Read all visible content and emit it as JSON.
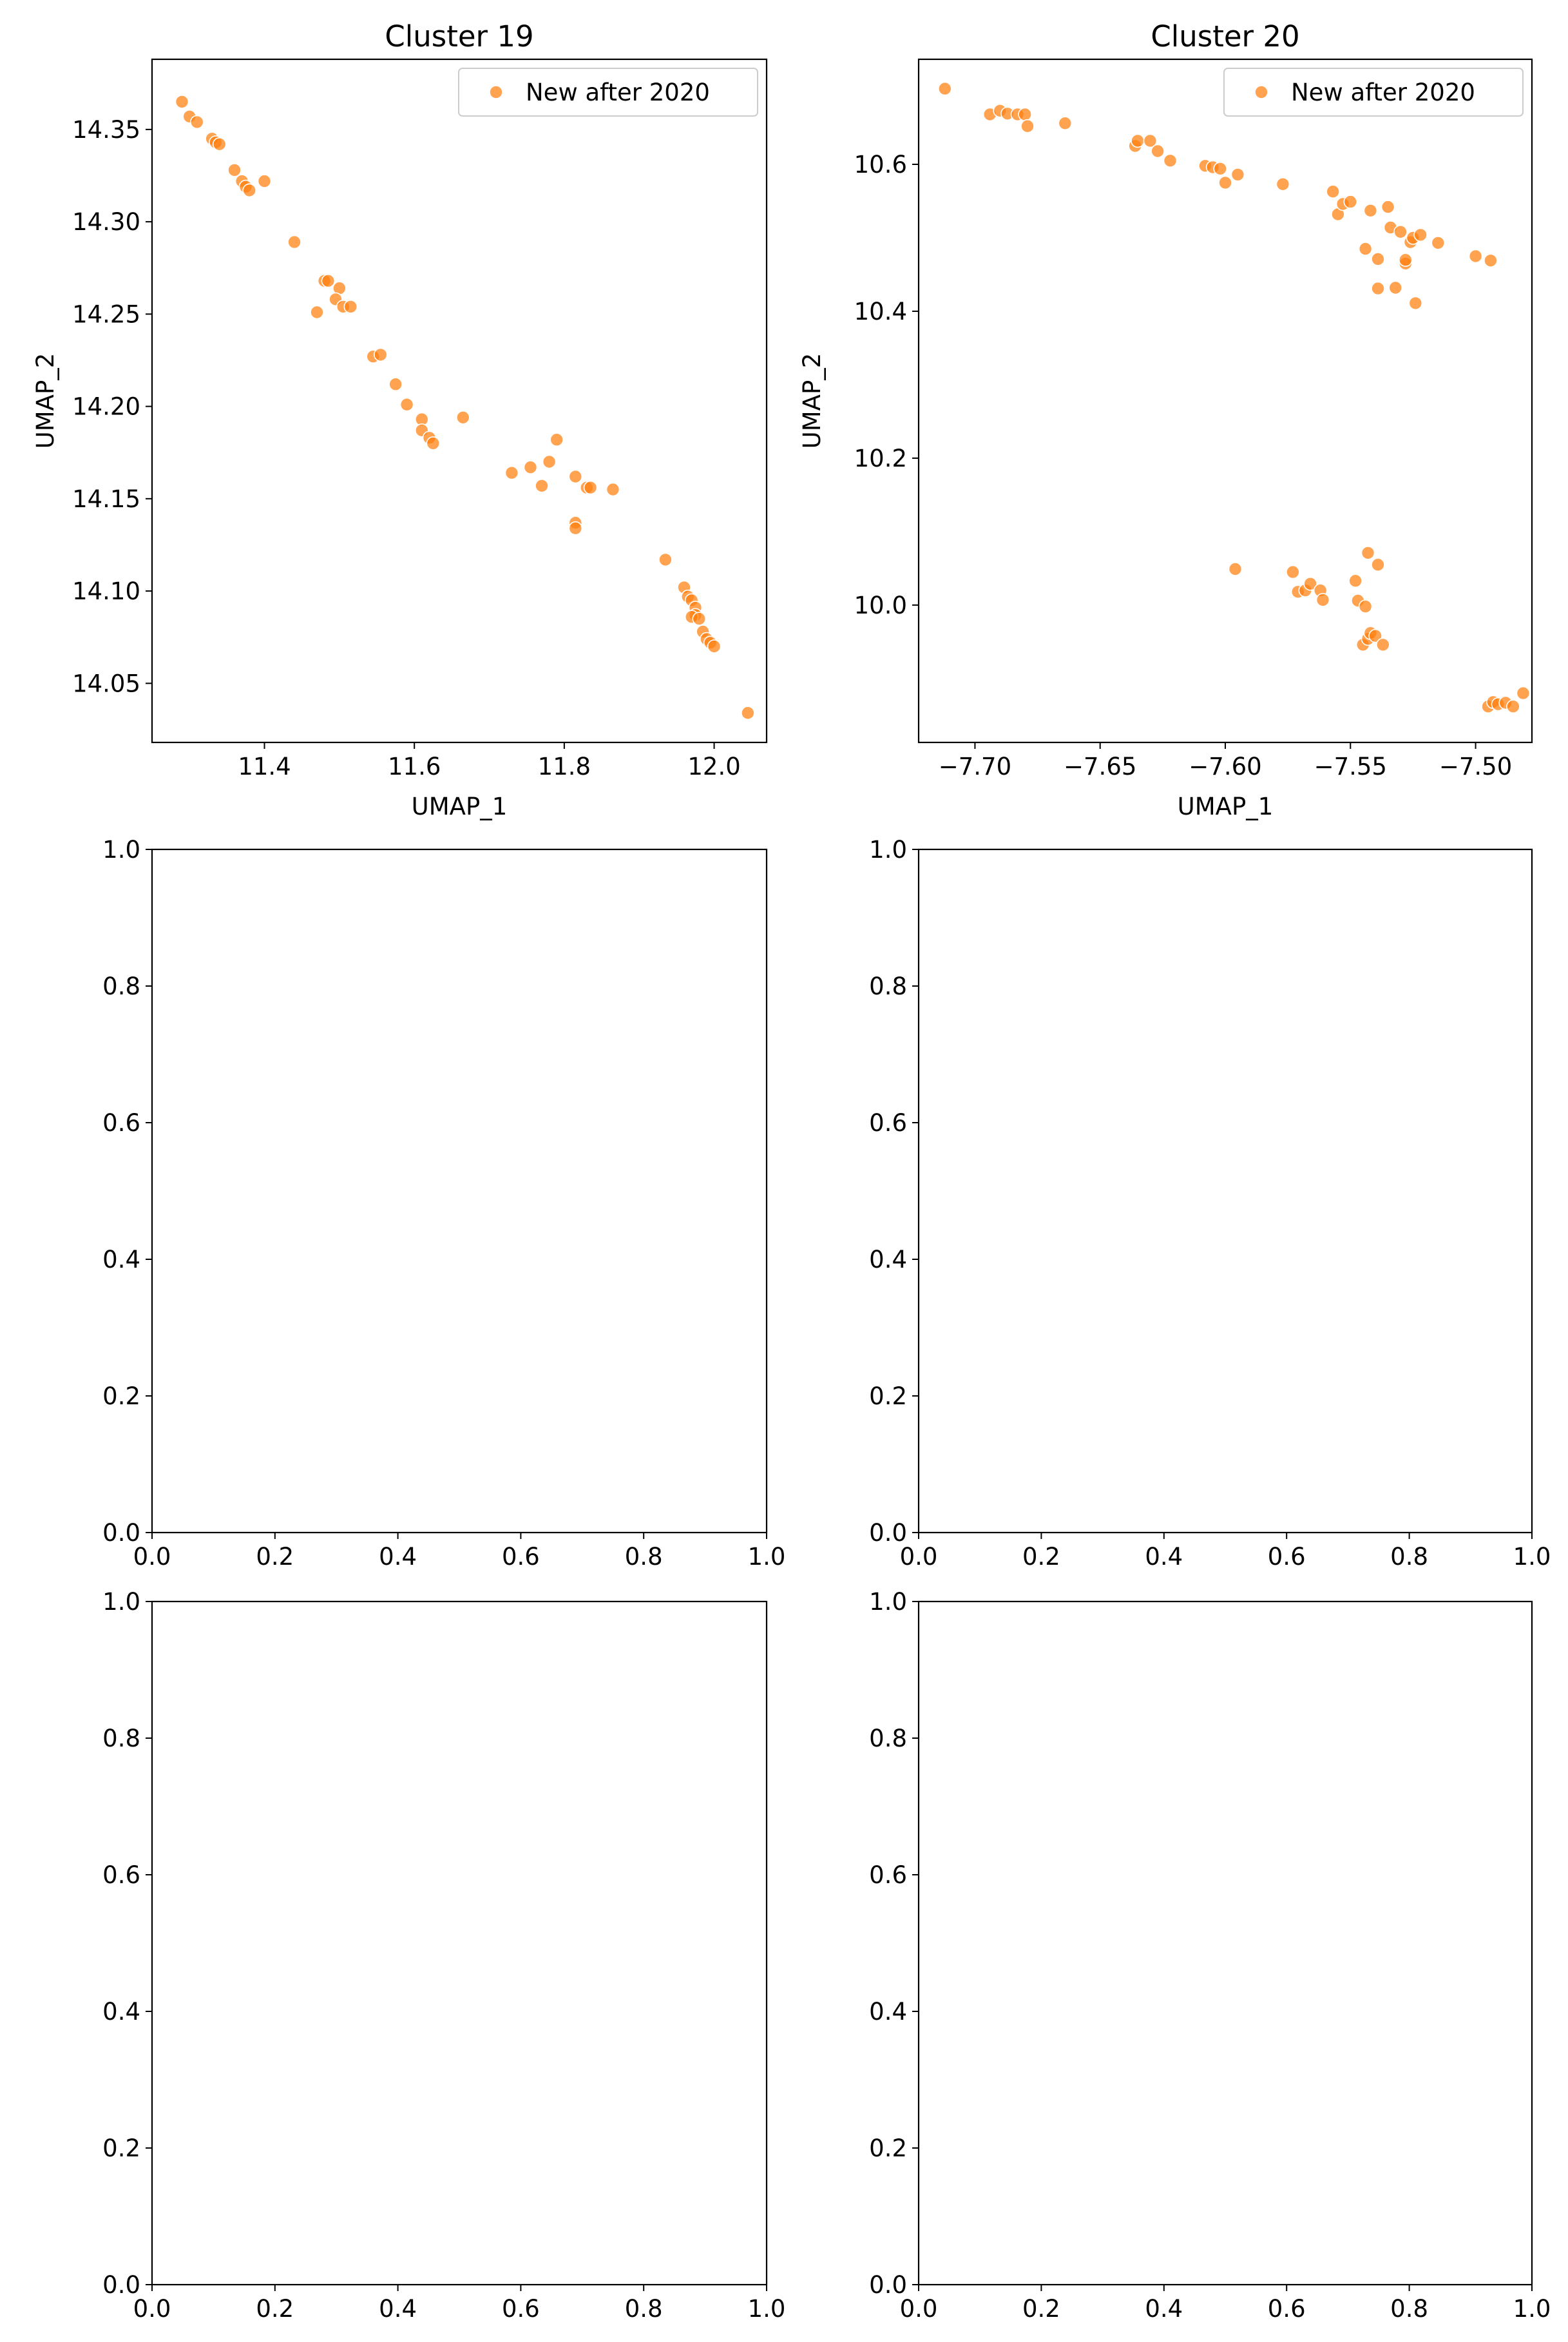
{
  "chart_data": [
    {
      "type": "scatter",
      "title": "Cluster 19",
      "xlabel": "UMAP_1",
      "ylabel": "UMAP_2",
      "xlim": [
        11.25,
        12.07
      ],
      "ylim": [
        14.018,
        14.388
      ],
      "xticks": [
        11.4,
        11.6,
        11.8,
        12.0
      ],
      "xtick_labels": [
        "11.4",
        "11.6",
        "11.8",
        "12.0"
      ],
      "yticks": [
        14.05,
        14.1,
        14.15,
        14.2,
        14.25,
        14.3,
        14.35
      ],
      "ytick_labels": [
        "14.05",
        "14.10",
        "14.15",
        "14.20",
        "14.25",
        "14.30",
        "14.35"
      ],
      "grid": false,
      "legend": {
        "position": "top-right",
        "entries": [
          "New after 2020"
        ]
      },
      "series": [
        {
          "name": "New after 2020",
          "color": "#ff7f0e",
          "points": [
            [
              11.29,
              14.365
            ],
            [
              11.3,
              14.357
            ],
            [
              11.31,
              14.354
            ],
            [
              11.33,
              14.345
            ],
            [
              11.335,
              14.343
            ],
            [
              11.34,
              14.342
            ],
            [
              11.36,
              14.328
            ],
            [
              11.37,
              14.322
            ],
            [
              11.375,
              14.319
            ],
            [
              11.38,
              14.317
            ],
            [
              11.4,
              14.322
            ],
            [
              11.44,
              14.289
            ],
            [
              11.48,
              14.268
            ],
            [
              11.485,
              14.268
            ],
            [
              11.5,
              14.264
            ],
            [
              11.495,
              14.258
            ],
            [
              11.505,
              14.254
            ],
            [
              11.515,
              14.254
            ],
            [
              11.47,
              14.251
            ],
            [
              11.545,
              14.227
            ],
            [
              11.555,
              14.228
            ],
            [
              11.575,
              14.212
            ],
            [
              11.59,
              14.201
            ],
            [
              11.61,
              14.193
            ],
            [
              11.61,
              14.187
            ],
            [
              11.62,
              14.183
            ],
            [
              11.625,
              14.18
            ],
            [
              11.665,
              14.194
            ],
            [
              11.73,
              14.164
            ],
            [
              11.755,
              14.167
            ],
            [
              11.77,
              14.157
            ],
            [
              11.78,
              14.17
            ],
            [
              11.79,
              14.182
            ],
            [
              11.815,
              14.162
            ],
            [
              11.83,
              14.156
            ],
            [
              11.835,
              14.156
            ],
            [
              11.865,
              14.155
            ],
            [
              11.815,
              14.137
            ],
            [
              11.815,
              14.134
            ],
            [
              11.935,
              14.117
            ],
            [
              11.96,
              14.102
            ],
            [
              11.965,
              14.097
            ],
            [
              11.97,
              14.095
            ],
            [
              11.975,
              14.091
            ],
            [
              11.975,
              14.087
            ],
            [
              11.97,
              14.086
            ],
            [
              11.98,
              14.085
            ],
            [
              11.985,
              14.078
            ],
            [
              11.99,
              14.074
            ],
            [
              11.995,
              14.072
            ],
            [
              12.0,
              14.07
            ],
            [
              12.045,
              14.034
            ]
          ]
        }
      ]
    },
    {
      "type": "scatter",
      "title": "Cluster 20",
      "xlabel": "UMAP_1",
      "ylabel": "UMAP_2",
      "xlim": [
        -7.7225,
        -7.4775
      ],
      "ylim": [
        9.813,
        10.743
      ],
      "xticks": [
        -7.7,
        -7.65,
        -7.6,
        -7.55,
        -7.5
      ],
      "xtick_labels": [
        "−7.70",
        "−7.65",
        "−7.60",
        "−7.55",
        "−7.50"
      ],
      "yticks": [
        10.0,
        10.2,
        10.4,
        10.6
      ],
      "ytick_labels": [
        "10.0",
        "10.2",
        "10.4",
        "10.6"
      ],
      "grid": false,
      "legend": {
        "position": "top-right",
        "entries": [
          "New after 2020"
        ]
      },
      "series": [
        {
          "name": "New after 2020",
          "color": "#ff7f0e",
          "points": [
            [
              -7.712,
              10.703
            ],
            [
              -7.694,
              10.668
            ],
            [
              -7.69,
              10.673
            ],
            [
              -7.687,
              10.669
            ],
            [
              -7.683,
              10.668
            ],
            [
              -7.68,
              10.668
            ],
            [
              -7.679,
              10.652
            ],
            [
              -7.664,
              10.656
            ],
            [
              -7.636,
              10.625
            ],
            [
              -7.635,
              10.632
            ],
            [
              -7.63,
              10.632
            ],
            [
              -7.627,
              10.618
            ],
            [
              -7.622,
              10.605
            ],
            [
              -7.608,
              10.598
            ],
            [
              -7.605,
              10.596
            ],
            [
              -7.602,
              10.594
            ],
            [
              -7.6,
              10.575
            ],
            [
              -7.595,
              10.586
            ],
            [
              -7.577,
              10.573
            ],
            [
              -7.557,
              10.563
            ],
            [
              -7.555,
              10.532
            ],
            [
              -7.553,
              10.546
            ],
            [
              -7.55,
              10.549
            ],
            [
              -7.544,
              10.485
            ],
            [
              -7.542,
              10.537
            ],
            [
              -7.539,
              10.471
            ],
            [
              -7.539,
              10.431
            ],
            [
              -7.535,
              10.542
            ],
            [
              -7.534,
              10.514
            ],
            [
              -7.532,
              10.432
            ],
            [
              -7.53,
              10.508
            ],
            [
              -7.528,
              10.465
            ],
            [
              -7.528,
              10.47
            ],
            [
              -7.526,
              10.494
            ],
            [
              -7.525,
              10.5
            ],
            [
              -7.524,
              10.411
            ],
            [
              -7.522,
              10.504
            ],
            [
              -7.515,
              10.493
            ],
            [
              -7.5,
              10.475
            ],
            [
              -7.494,
              10.469
            ],
            [
              -7.596,
              10.049
            ],
            [
              -7.573,
              10.045
            ],
            [
              -7.571,
              10.018
            ],
            [
              -7.568,
              10.02
            ],
            [
              -7.566,
              10.029
            ],
            [
              -7.562,
              10.02
            ],
            [
              -7.561,
              10.007
            ],
            [
              -7.548,
              10.033
            ],
            [
              -7.547,
              10.006
            ],
            [
              -7.544,
              9.998
            ],
            [
              -7.543,
              10.071
            ],
            [
              -7.539,
              10.055
            ],
            [
              -7.545,
              9.946
            ],
            [
              -7.543,
              9.954
            ],
            [
              -7.542,
              9.962
            ],
            [
              -7.54,
              9.958
            ],
            [
              -7.537,
              9.946
            ],
            [
              -7.495,
              9.862
            ],
            [
              -7.493,
              9.868
            ],
            [
              -7.491,
              9.865
            ],
            [
              -7.488,
              9.867
            ],
            [
              -7.485,
              9.862
            ],
            [
              -7.481,
              9.88
            ]
          ]
        }
      ]
    },
    {
      "type": "scatter",
      "title": "",
      "xlabel": "",
      "ylabel": "",
      "xlim": [
        0,
        1
      ],
      "ylim": [
        0,
        1
      ],
      "xticks": [
        0,
        0.2,
        0.4,
        0.6,
        0.8,
        1.0
      ],
      "xtick_labels": [
        "0.0",
        "0.2",
        "0.4",
        "0.6",
        "0.8",
        "1.0"
      ],
      "yticks": [
        0,
        0.2,
        0.4,
        0.6,
        0.8,
        1.0
      ],
      "ytick_labels": [
        "0.0",
        "0.2",
        "0.4",
        "0.6",
        "0.8",
        "1.0"
      ],
      "grid": false,
      "series": []
    },
    {
      "type": "scatter",
      "title": "",
      "xlabel": "",
      "ylabel": "",
      "xlim": [
        0,
        1
      ],
      "ylim": [
        0,
        1
      ],
      "xticks": [
        0,
        0.2,
        0.4,
        0.6,
        0.8,
        1.0
      ],
      "xtick_labels": [
        "0.0",
        "0.2",
        "0.4",
        "0.6",
        "0.8",
        "1.0"
      ],
      "yticks": [
        0,
        0.2,
        0.4,
        0.6,
        0.8,
        1.0
      ],
      "ytick_labels": [
        "0.0",
        "0.2",
        "0.4",
        "0.6",
        "0.8",
        "1.0"
      ],
      "grid": false,
      "series": []
    },
    {
      "type": "scatter",
      "title": "",
      "xlabel": "",
      "ylabel": "",
      "xlim": [
        0,
        1
      ],
      "ylim": [
        0,
        1
      ],
      "xticks": [
        0,
        0.2,
        0.4,
        0.6,
        0.8,
        1.0
      ],
      "xtick_labels": [
        "0.0",
        "0.2",
        "0.4",
        "0.6",
        "0.8",
        "1.0"
      ],
      "yticks": [
        0,
        0.2,
        0.4,
        0.6,
        0.8,
        1.0
      ],
      "ytick_labels": [
        "0.0",
        "0.2",
        "0.4",
        "0.6",
        "0.8",
        "1.0"
      ],
      "grid": false,
      "series": []
    },
    {
      "type": "scatter",
      "title": "",
      "xlabel": "",
      "ylabel": "",
      "xlim": [
        0,
        1
      ],
      "ylim": [
        0,
        1
      ],
      "xticks": [
        0,
        0.2,
        0.4,
        0.6,
        0.8,
        1.0
      ],
      "xtick_labels": [
        "0.0",
        "0.2",
        "0.4",
        "0.6",
        "0.8",
        "1.0"
      ],
      "yticks": [
        0,
        0.2,
        0.4,
        0.6,
        0.8,
        1.0
      ],
      "ytick_labels": [
        "0.0",
        "0.2",
        "0.4",
        "0.6",
        "0.8",
        "1.0"
      ],
      "grid": false,
      "series": []
    }
  ]
}
